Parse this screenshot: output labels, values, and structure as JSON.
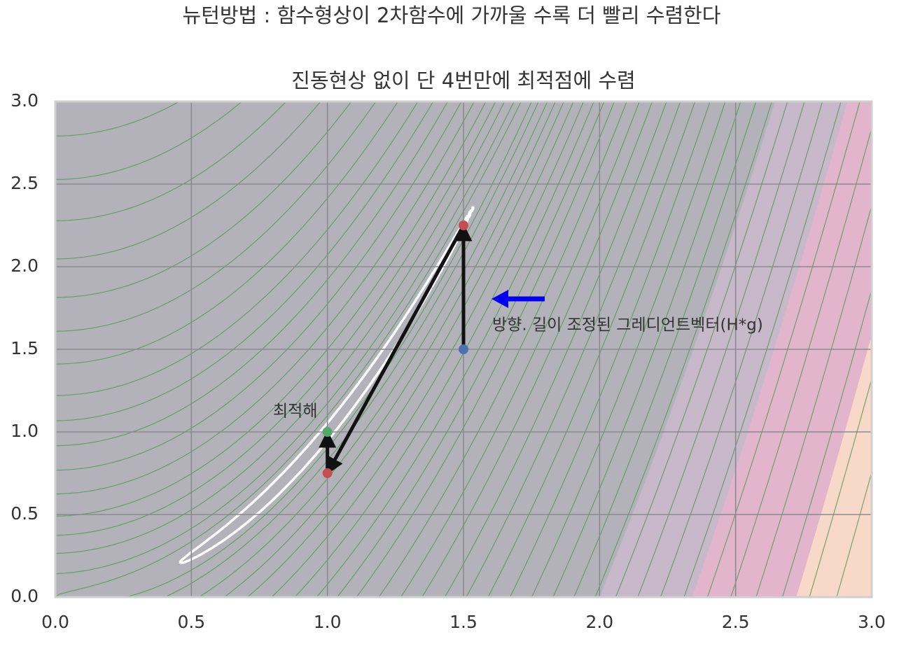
{
  "chart_data": {
    "type": "contour",
    "suptitle": "뉴턴방법 : 함수형상이 2차함수에 가까울 수록 더 빨리 수렴한다",
    "title": "진동현상 없이 단 4번만에 최적점에 수렴",
    "xlim": [
      0,
      3
    ],
    "ylim": [
      0,
      3
    ],
    "xticks": [
      {
        "value": 0,
        "label": "0.0"
      },
      0.5,
      {
        "value": 1,
        "label": "1.0"
      },
      1.5,
      {
        "value": 2,
        "label": "2.0"
      },
      2.5,
      {
        "value": 3,
        "label": "3.0"
      }
    ],
    "yticks": [
      {
        "value": 0,
        "label": "0.0"
      },
      0.5,
      {
        "value": 1,
        "label": "1.0"
      },
      1.5,
      {
        "value": 2,
        "label": "2.0"
      },
      2.5,
      {
        "value": 3,
        "label": "3.0"
      }
    ],
    "grid": true,
    "fill": {
      "base_color": "#b3b2ba",
      "levels": [
        1600,
        3000,
        5500
      ],
      "colors": [
        "#c7b9c9",
        "#e3b5cc",
        "#f8d8c8"
      ]
    },
    "contour": {
      "levels": [
        1,
        3,
        8,
        15,
        25,
        40,
        60,
        85,
        115,
        150,
        200,
        260,
        330,
        420,
        520,
        640,
        780,
        940,
        1120,
        1320,
        1550,
        1800,
        2100,
        2450,
        2850,
        3300,
        3800,
        4400,
        5100,
        5900,
        6800
      ],
      "color": "#4f9a4f"
    },
    "valley": {
      "level": 0.3,
      "color": "#ffffff"
    },
    "steps": {
      "x": [
        1.5,
        1.5,
        1.0,
        1.0
      ],
      "y": [
        1.5,
        2.25,
        0.75,
        1.0
      ],
      "colors": [
        "#4c72b0",
        "#c44e52",
        "#c44e52",
        "#55a868"
      ],
      "arrow_color": "#111111"
    },
    "annotations": [
      {
        "text": "최적해"
      },
      {
        "text": "방향. 길이 조정된 그레디언트벡터(H*g)",
        "arrow_color": "#0000ee"
      }
    ]
  }
}
